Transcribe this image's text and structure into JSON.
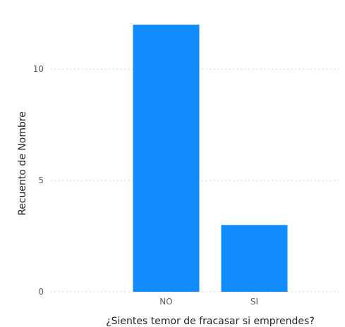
{
  "chart_data": {
    "type": "bar",
    "categories": [
      "NO",
      "SI"
    ],
    "values": [
      12,
      3
    ],
    "xlabel": "¿Sientes temor de fracasar si emprendes?",
    "ylabel": "Recuento de Nombre",
    "yticks": [
      0,
      5,
      10
    ],
    "ylim": [
      0,
      12.6
    ],
    "grid": true,
    "bar_color": "#118DFF"
  }
}
